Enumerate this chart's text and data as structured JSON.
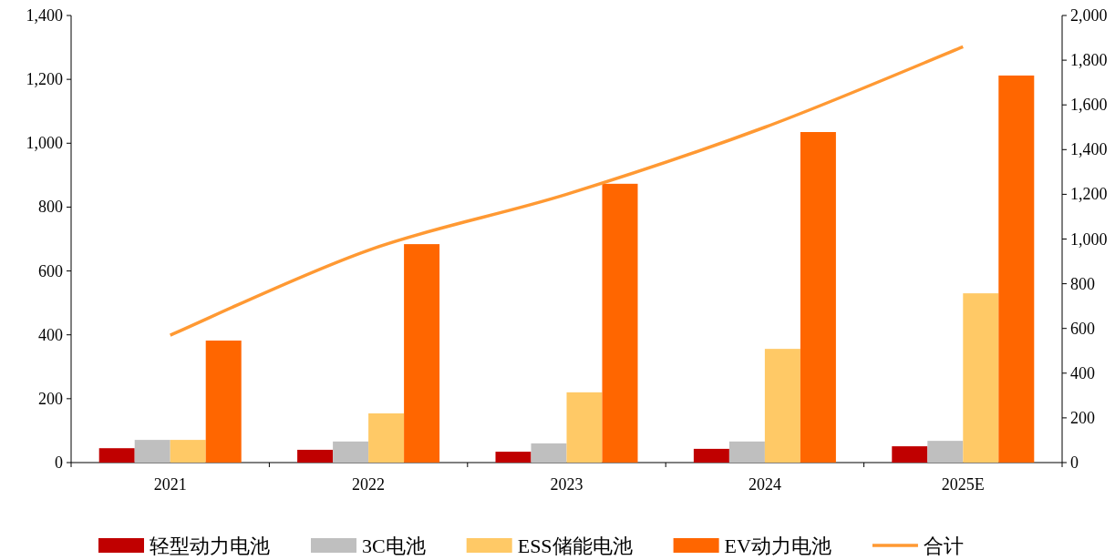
{
  "chart_data": {
    "type": "bar",
    "categories": [
      "2021",
      "2022",
      "2023",
      "2024",
      "2025E"
    ],
    "series": [
      {
        "name": "轻型动力电池",
        "color": "#c00000",
        "values": [
          45,
          40,
          34,
          43,
          51
        ]
      },
      {
        "name": "3C电池",
        "color": "#bfbfbf",
        "values": [
          71,
          66,
          60,
          66,
          68
        ]
      },
      {
        "name": "ESS储能电池",
        "color": "#ffc966",
        "values": [
          71,
          154,
          220,
          356,
          530
        ]
      },
      {
        "name": "EV动力电池",
        "color": "#ff6600",
        "values": [
          382,
          684,
          873,
          1035,
          1212
        ]
      },
      {
        "name": "合计",
        "color": "#ff9933",
        "type": "line",
        "axis": "y2",
        "values": [
          570,
          950,
          1200,
          1500,
          1860
        ]
      }
    ],
    "ylim": [
      0,
      1400
    ],
    "yticks": [
      0,
      200,
      400,
      600,
      800,
      {
        "value": 1000,
        "label": "1,000"
      },
      {
        "value": 1200,
        "label": "1,200"
      },
      {
        "value": 1400,
        "label": "1,400"
      }
    ],
    "y2lim": [
      0,
      2000
    ],
    "y2ticks": [
      0,
      200,
      400,
      600,
      800,
      {
        "value": 1000,
        "label": "1,000"
      },
      {
        "value": 1200,
        "label": "1,200"
      },
      {
        "value": 1400,
        "label": "1,400"
      },
      {
        "value": 1600,
        "label": "1,600"
      },
      {
        "value": 1800,
        "label": "1,800"
      },
      {
        "value": 2000,
        "label": "2,000"
      }
    ],
    "legend": "bottom",
    "grid": false
  }
}
